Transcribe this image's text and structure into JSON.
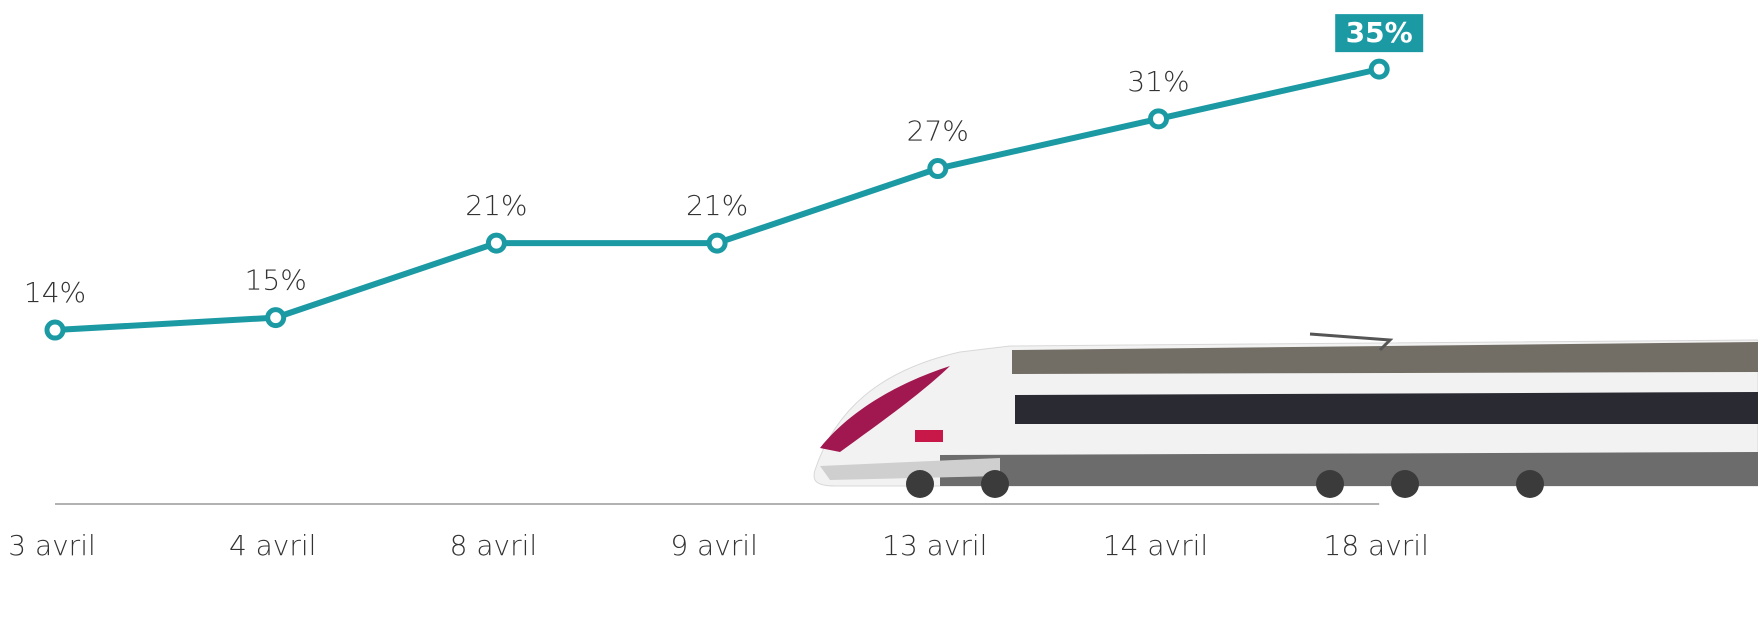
{
  "chart_data": {
    "type": "line",
    "categories": [
      "3 avril",
      "4 avril",
      "8 avril",
      "9 avril",
      "13 avril",
      "14 avril",
      "18 avril"
    ],
    "series": [
      {
        "color": "#1b9aa4",
        "values": [
          14,
          15,
          21,
          21,
          27,
          31,
          35
        ],
        "value_labels": [
          "14%",
          "15%",
          "21%",
          "21%",
          "27%",
          "31%",
          "35%"
        ]
      }
    ],
    "ylim": [
      0,
      40
    ]
  }
}
